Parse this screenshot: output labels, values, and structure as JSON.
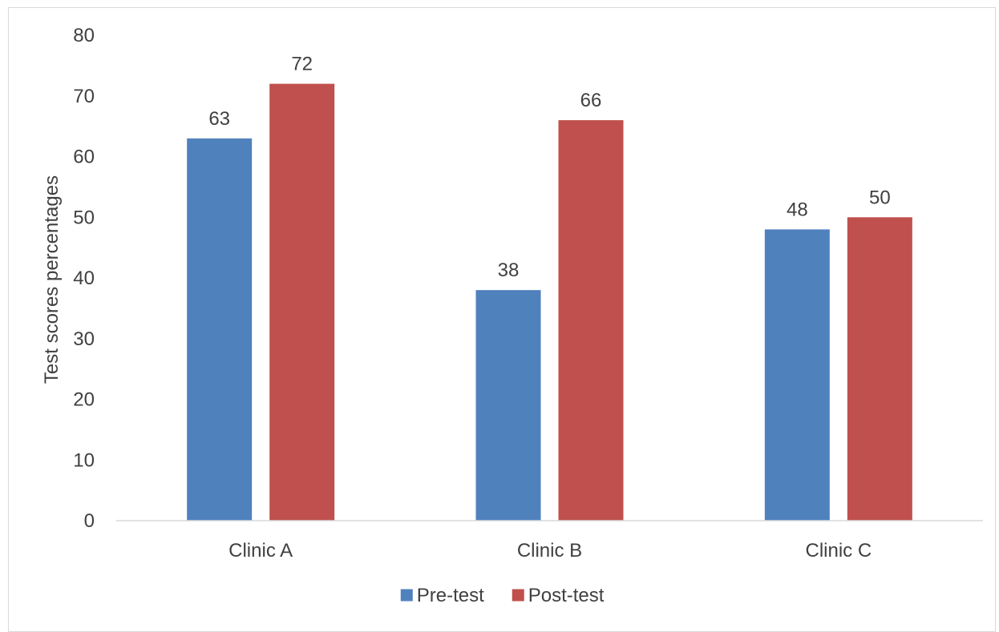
{
  "chart_data": {
    "type": "bar",
    "categories": [
      "Clinic A",
      "Clinic B",
      "Clinic C"
    ],
    "series": [
      {
        "name": "Pre-test",
        "values": [
          63,
          38,
          48
        ],
        "color": "#4f81bd",
        "labels": [
          "63",
          "38",
          "48"
        ]
      },
      {
        "name": "Post-test",
        "values": [
          72,
          66,
          50
        ],
        "color": "#c0504d",
        "labels": [
          "72",
          "66",
          "50"
        ]
      }
    ],
    "title": "",
    "xlabel": "",
    "ylabel": "Test scores percentages",
    "ylim": [
      0,
      80
    ],
    "yticks": [
      0,
      10,
      20,
      30,
      40,
      50,
      60,
      70,
      80
    ],
    "grid": false,
    "legend_position": "bottom"
  }
}
